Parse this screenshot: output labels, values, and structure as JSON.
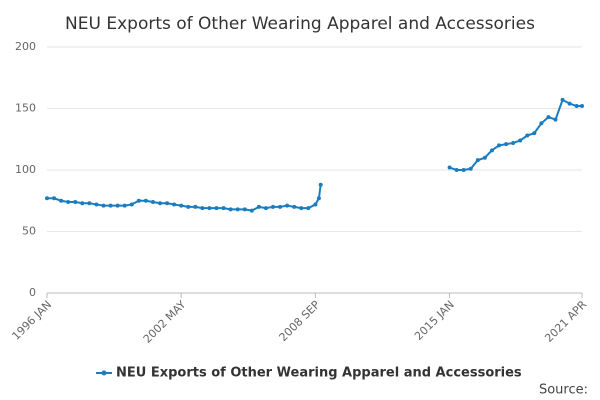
{
  "chart_data": {
    "type": "line",
    "title": "NEU Exports of Other Wearing Apparel and Accessories",
    "source": "Source:",
    "x": [
      "1996 JAN",
      "1996 MAY",
      "1996 SEP",
      "1997 JAN",
      "1997 MAY",
      "1997 SEP",
      "1998 JAN",
      "1998 MAY",
      "1998 SEP",
      "1999 JAN",
      "1999 MAY",
      "1999 SEP",
      "2000 JAN",
      "2000 MAY",
      "2000 SEP",
      "2001 JAN",
      "2001 MAY",
      "2001 SEP",
      "2002 JAN",
      "2002 MAY",
      "2002 SEP",
      "2003 JAN",
      "2003 MAY",
      "2003 SEP",
      "2004 JAN",
      "2004 MAY",
      "2004 SEP",
      "2005 JAN",
      "2005 MAY",
      "2005 SEP",
      "2006 JAN",
      "2006 MAY",
      "2006 SEP",
      "2007 JAN",
      "2007 MAY",
      "2007 SEP",
      "2008 JAN",
      "2008 MAY",
      "2008 SEP",
      "2008 NOV",
      "2008 DEC",
      "2012 JAN",
      "2015 JAN",
      "2015 MAY",
      "2015 SEP",
      "2016 JAN",
      "2016 MAY",
      "2016 SEP",
      "2017 JAN",
      "2017 MAY",
      "2017 SEP",
      "2018 JAN",
      "2018 MAY",
      "2018 SEP",
      "2019 JAN",
      "2019 MAY",
      "2019 SEP",
      "2020 JAN",
      "2020 MAY",
      "2020 SEP",
      "2021 JAN",
      "2021 APR"
    ],
    "series": [
      {
        "name": "NEU Exports of Other Wearing Apparel and Accessories",
        "color": "#1a7dc0",
        "values": [
          77,
          77,
          75,
          74,
          74,
          73,
          73,
          72,
          71,
          71,
          71,
          71,
          72,
          75,
          75,
          74,
          73,
          73,
          72,
          71,
          70,
          70,
          69,
          69,
          69,
          69,
          68,
          68,
          68,
          67,
          70,
          69,
          70,
          70,
          71,
          70,
          69,
          69,
          72,
          77,
          88,
          null,
          102,
          100,
          100,
          101,
          108,
          110,
          116,
          120,
          121,
          122,
          124,
          128,
          130,
          138,
          143,
          141,
          157,
          154,
          152,
          152
        ]
      }
    ],
    "xlim": [
      "1996 JAN",
      "2021 APR"
    ],
    "xticks": [
      "1996 JAN",
      "2002 MAY",
      "2008 SEP",
      "2015 JAN",
      "2021 APR"
    ],
    "ylim": [
      0,
      200
    ],
    "yticks": [
      0,
      50,
      100,
      150,
      200
    ],
    "grid": true,
    "legend": "bottom"
  }
}
